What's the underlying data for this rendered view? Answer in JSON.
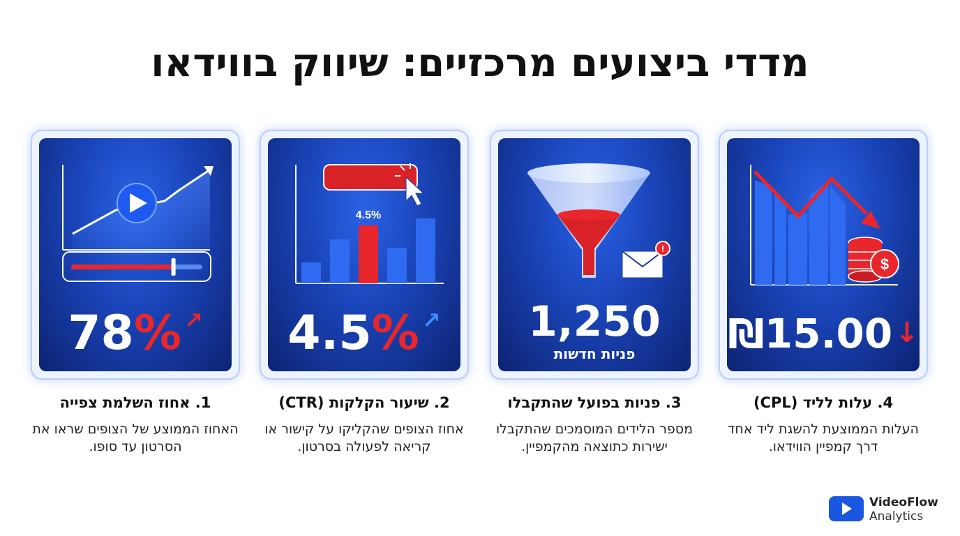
{
  "page": {
    "title": "מדדי ביצועים מרכזיים: שיווק בווידאו"
  },
  "cards": [
    {
      "heading": "1. אחוז השלמת צפייה",
      "description": "האחוז הממוצע של הצופים שראו את הסרטון עד סופו.",
      "value_number": "78",
      "value_suffix": "%",
      "trend": "up",
      "trend_color": "#e8262c",
      "progress_fraction": 0.78
    },
    {
      "heading": "2. שיעור הקלקות (CTR)",
      "description": "אחוז הצופים שהקליקו על קישור או קריאה לפעולה בסרטון.",
      "value_number": "4.5",
      "value_suffix": "%",
      "trend": "up",
      "trend_color": "#3b8cff",
      "chart_label": "4.5%"
    },
    {
      "heading": "3. פניות בפועל שהתקבלו",
      "description": "מספר הלידים המוסמכים שהתקבלו ישירות כתוצאה מהקמפיין.",
      "value_number": "1,250",
      "value_sub": "פניות חדשות"
    },
    {
      "heading": "4. עלות לליד (CPL)",
      "description": "העלות הממוצעת להשגת ליד אחד דרך קמפיין הווידאו.",
      "value_number": "₪15.00",
      "trend": "down",
      "trend_color": "#e8262c"
    }
  ],
  "brand": {
    "name": "VideoFlow",
    "sub": "Analytics"
  },
  "colors": {
    "card_blue": "#1a44b8",
    "accent_red": "#e8262c",
    "accent_blue": "#3b8cff"
  }
}
